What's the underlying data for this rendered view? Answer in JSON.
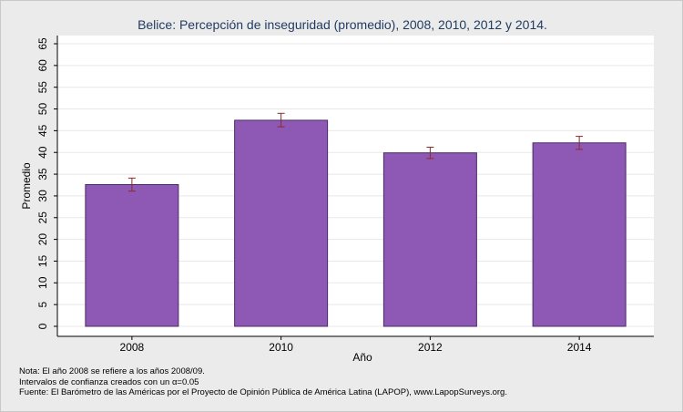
{
  "chart_data": {
    "type": "bar",
    "title": "Belice: Percepción de inseguridad (promedio), 2008, 2010, 2012 y 2014.",
    "xlabel": "Año",
    "ylabel": "Promedio",
    "categories": [
      "2008",
      "2010",
      "2012",
      "2014"
    ],
    "values": [
      32.6,
      47.4,
      39.9,
      42.2
    ],
    "ci_low": [
      31.1,
      45.9,
      38.6,
      40.7
    ],
    "ci_high": [
      34.1,
      49.0,
      41.2,
      43.7
    ],
    "ylim": [
      0,
      65
    ],
    "yticks": [
      "0",
      "5",
      "10",
      "15",
      "20",
      "25",
      "30",
      "35",
      "40",
      "45",
      "50",
      "55",
      "60",
      "65"
    ],
    "grid": true,
    "colors": {
      "bar_fill": "#8e59b4",
      "bar_stroke": "#4a2a66",
      "error_bar": "#8b2a2a",
      "plot_bg": "#ffffff",
      "page_bg": "#ebebeb",
      "grid": "#e8e8e8",
      "title": "#1f3a5f"
    }
  },
  "notes": [
    "Nota: El año 2008 se refiere a los años 2008/09.",
    "Intervalos de confianza creados con un α=0.05",
    "Fuente: El Barómetro de las Américas por el Proyecto de Opinión Pública de América Latina (LAPOP), www.LapopSurveys.org."
  ]
}
